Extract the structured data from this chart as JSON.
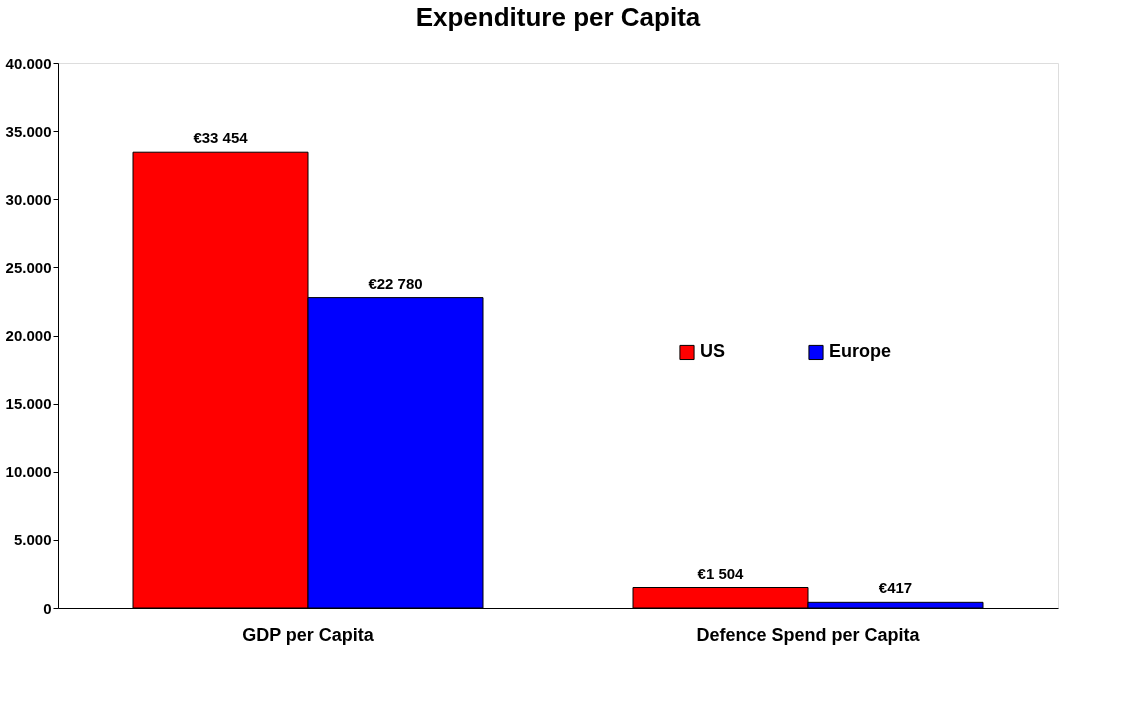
{
  "chart_data": {
    "type": "bar",
    "title": "Expenditure per Capita",
    "categories": [
      "GDP per Capita",
      "Defence Spend per Capita"
    ],
    "series": [
      {
        "name": "US",
        "color": "#ff0000",
        "values": [
          33454,
          1504
        ],
        "value_labels": [
          "€33 454",
          "€1 504"
        ]
      },
      {
        "name": "Europe",
        "color": "#0000ff",
        "values": [
          22780,
          417
        ],
        "value_labels": [
          "€22 780",
          "€417"
        ]
      }
    ],
    "ylim": [
      0,
      40000
    ],
    "yticks": [
      {
        "value": 0,
        "label": "0"
      },
      {
        "value": 5000,
        "label": "5.000"
      },
      {
        "value": 10000,
        "label": "10.000"
      },
      {
        "value": 15000,
        "label": "15.000"
      },
      {
        "value": 20000,
        "label": "20.000"
      },
      {
        "value": 25000,
        "label": "25.000"
      },
      {
        "value": 30000,
        "label": "30.000"
      },
      {
        "value": 35000,
        "label": "35.000"
      },
      {
        "value": 40000,
        "label": "40.000"
      }
    ],
    "grid": false,
    "legend": "right"
  }
}
